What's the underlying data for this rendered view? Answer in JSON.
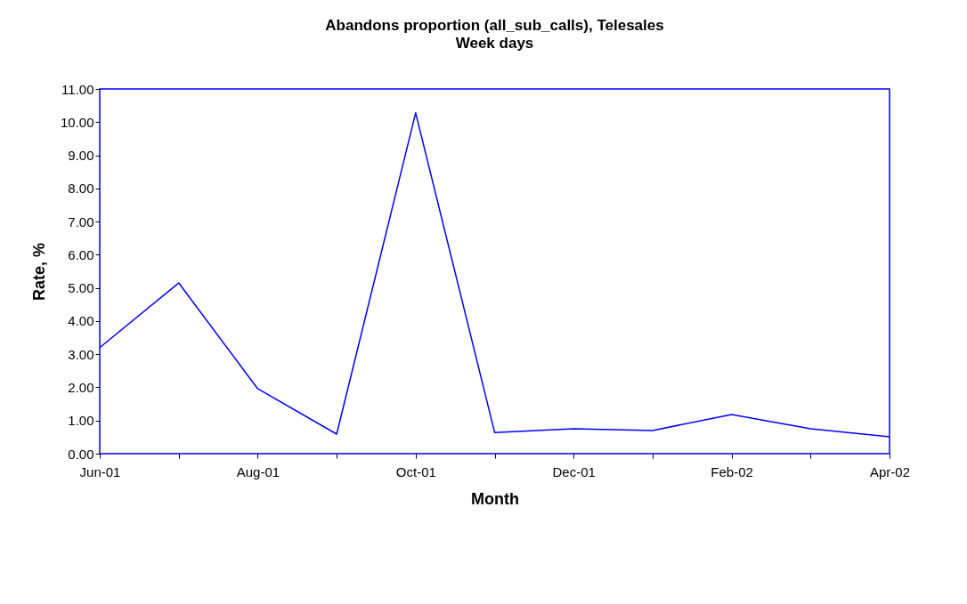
{
  "chart_data": {
    "type": "line",
    "title": "Abandons proportion (all_sub_calls), Telesales",
    "subtitle": "Week days",
    "xlabel": "Month",
    "ylabel": "Rate, %",
    "categories": [
      "Jun-01",
      null,
      "Aug-01",
      null,
      "Oct-01",
      null,
      "Dec-01",
      null,
      "Feb-02",
      null,
      "Apr-02"
    ],
    "series": [
      {
        "color": "#0000ff",
        "values": [
          3.2,
          5.15,
          1.96,
          0.59,
          10.28,
          0.64,
          0.75,
          0.7,
          1.18,
          0.75,
          0.51
        ]
      }
    ],
    "ylim": [
      0,
      11
    ],
    "yticks": [
      {
        "value": 0,
        "label": "0.00"
      },
      {
        "value": 1,
        "label": "1.00"
      },
      {
        "value": 2,
        "label": "2.00"
      },
      {
        "value": 3,
        "label": "3.00"
      },
      {
        "value": 4,
        "label": "4.00"
      },
      {
        "value": 5,
        "label": "5.00"
      },
      {
        "value": 6,
        "label": "6.00"
      },
      {
        "value": 7,
        "label": "7.00"
      },
      {
        "value": 8,
        "label": "8.00"
      },
      {
        "value": 9,
        "label": "9.00"
      },
      {
        "value": 10,
        "label": "10.00"
      },
      {
        "value": 11,
        "label": "11.00"
      }
    ],
    "grid": false,
    "legend": false,
    "marker": "none",
    "line_style": "solid"
  }
}
